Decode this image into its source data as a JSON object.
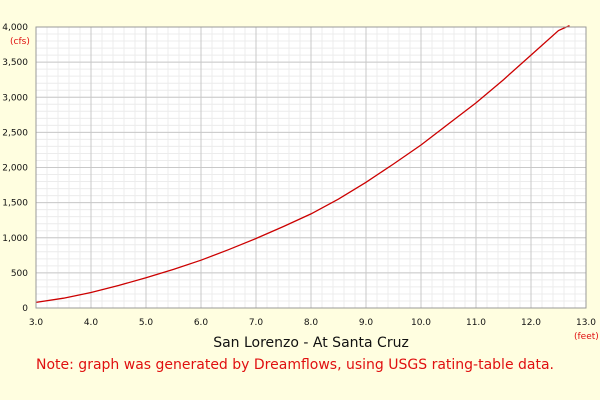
{
  "colors": {
    "background": "#fffee0",
    "plot_background": "#ffffff",
    "curve": "#cc0000",
    "accent_text": "#e01010",
    "major_grid": "#c8c8c8",
    "minor_grid": "#ececec"
  },
  "chart_data": {
    "type": "line",
    "title": "San Lorenzo - At Santa Cruz",
    "xlabel": "",
    "ylabel": "",
    "x_unit": "(feet)",
    "y_unit": "(cfs)",
    "xlim": [
      3.0,
      13.0
    ],
    "ylim": [
      0,
      4000
    ],
    "x_ticks": [
      "3.0",
      "4.0",
      "5.0",
      "6.0",
      "7.0",
      "8.0",
      "9.0",
      "10.0",
      "11.0",
      "12.0",
      "13.0"
    ],
    "y_ticks": [
      "0",
      "500",
      "1,000",
      "1,500",
      "2,000",
      "2,500",
      "3,000",
      "3,500",
      "4,000"
    ],
    "grid": true,
    "series": [
      {
        "x": [
          3.0,
          3.5,
          4.0,
          4.5,
          5.0,
          5.5,
          6.0,
          6.5,
          7.0,
          7.5,
          8.0,
          8.5,
          9.0,
          9.5,
          10.0,
          10.5,
          11.0,
          11.5,
          12.0,
          12.5,
          12.7
        ],
        "y": [
          80,
          140,
          220,
          320,
          430,
          550,
          680,
          830,
          990,
          1160,
          1340,
          1550,
          1790,
          2050,
          2320,
          2620,
          2920,
          3250,
          3600,
          3950,
          4020
        ]
      }
    ]
  },
  "note": "Note: graph was generated by Dreamflows, using USGS rating-table data."
}
